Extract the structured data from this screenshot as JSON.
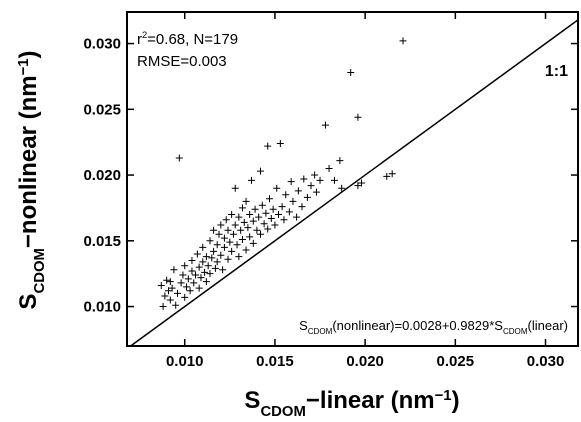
{
  "chart_data": {
    "type": "scatter",
    "marker": "+",
    "color": "#000000",
    "xlabel": [
      "S",
      "CDOM",
      "−linear (nm",
      "−1",
      ")"
    ],
    "ylabel": [
      "S",
      "CDOM",
      "−nonlinear (nm",
      "−1",
      ")"
    ],
    "stats_text": [
      "r",
      "2",
      "=0.68, N=179"
    ],
    "rmse_text": "RMSE=0.003",
    "reference_line_label": "1:1",
    "equation": [
      "S",
      "CDOM",
      "(nonlinear)=0.0028+0.9829*S",
      "CDOM",
      "(linear)"
    ],
    "xlim": [
      0.0068,
      0.0318
    ],
    "ylim": [
      0.007,
      0.0324
    ],
    "xticks": [
      {
        "value": 0.01,
        "label": "0.010"
      },
      {
        "value": 0.015,
        "label": "0.015"
      },
      {
        "value": 0.02,
        "label": "0.020"
      },
      {
        "value": 0.025,
        "label": "0.025"
      },
      {
        "value": 0.03,
        "label": "0.030"
      }
    ],
    "yticks": [
      {
        "value": 0.01,
        "label": "0.010"
      },
      {
        "value": 0.015,
        "label": "0.015"
      },
      {
        "value": 0.02,
        "label": "0.020"
      },
      {
        "value": 0.025,
        "label": "0.025"
      },
      {
        "value": 0.03,
        "label": "0.030"
      }
    ],
    "x": [
      0.0087,
      0.0088,
      0.0089,
      0.009,
      0.0091,
      0.0092,
      0.0092,
      0.0093,
      0.0094,
      0.0095,
      0.0096,
      0.0097,
      0.0098,
      0.0099,
      0.01,
      0.01,
      0.0101,
      0.0102,
      0.0103,
      0.0104,
      0.0104,
      0.0105,
      0.0106,
      0.0107,
      0.0108,
      0.0108,
      0.0109,
      0.011,
      0.011,
      0.0111,
      0.0112,
      0.0112,
      0.0113,
      0.0114,
      0.0114,
      0.0115,
      0.0116,
      0.0116,
      0.0117,
      0.0118,
      0.0118,
      0.0119,
      0.012,
      0.012,
      0.0121,
      0.0122,
      0.0122,
      0.0123,
      0.0124,
      0.0124,
      0.0125,
      0.0126,
      0.0126,
      0.0127,
      0.0128,
      0.0128,
      0.0129,
      0.013,
      0.013,
      0.0131,
      0.0132,
      0.0132,
      0.0133,
      0.0134,
      0.0134,
      0.0135,
      0.0136,
      0.0136,
      0.0137,
      0.0138,
      0.0138,
      0.0139,
      0.014,
      0.0141,
      0.0142,
      0.0142,
      0.0143,
      0.0144,
      0.0145,
      0.0146,
      0.0146,
      0.0147,
      0.0148,
      0.0149,
      0.015,
      0.0151,
      0.0152,
      0.0153,
      0.0154,
      0.0155,
      0.0156,
      0.0158,
      0.0159,
      0.016,
      0.0162,
      0.0163,
      0.0165,
      0.0166,
      0.0168,
      0.017,
      0.0172,
      0.0173,
      0.0175,
      0.0178,
      0.018,
      0.0183,
      0.0186,
      0.0187,
      0.0192,
      0.0196,
      0.0196,
      0.0198,
      0.0212,
      0.0215,
      0.0221
    ],
    "values": [
      0.0116,
      0.01,
      0.0108,
      0.012,
      0.0112,
      0.0105,
      0.0119,
      0.0114,
      0.0128,
      0.0101,
      0.011,
      0.0213,
      0.0118,
      0.0124,
      0.0107,
      0.0131,
      0.0115,
      0.0121,
      0.0112,
      0.0127,
      0.0135,
      0.0118,
      0.0124,
      0.014,
      0.0114,
      0.013,
      0.0122,
      0.0145,
      0.0134,
      0.0126,
      0.0119,
      0.0138,
      0.0131,
      0.015,
      0.0125,
      0.0137,
      0.0142,
      0.0158,
      0.0129,
      0.0134,
      0.0147,
      0.0155,
      0.0139,
      0.0162,
      0.0128,
      0.0145,
      0.0152,
      0.0166,
      0.0136,
      0.0158,
      0.0149,
      0.017,
      0.0142,
      0.0155,
      0.0162,
      0.019,
      0.0147,
      0.0168,
      0.0138,
      0.0158,
      0.0175,
      0.0151,
      0.0164,
      0.0143,
      0.018,
      0.016,
      0.017,
      0.0153,
      0.0196,
      0.0165,
      0.0148,
      0.0174,
      0.0158,
      0.0168,
      0.0203,
      0.0155,
      0.0177,
      0.0163,
      0.0171,
      0.0222,
      0.0159,
      0.0182,
      0.0167,
      0.0174,
      0.0162,
      0.019,
      0.017,
      0.0224,
      0.0176,
      0.0166,
      0.0185,
      0.0172,
      0.0195,
      0.018,
      0.0168,
      0.0188,
      0.0176,
      0.0197,
      0.0183,
      0.0192,
      0.02,
      0.0187,
      0.0196,
      0.0238,
      0.0205,
      0.0196,
      0.0211,
      0.019,
      0.0278,
      0.0244,
      0.0192,
      0.0194,
      0.0199,
      0.0201,
      0.0302
    ]
  }
}
